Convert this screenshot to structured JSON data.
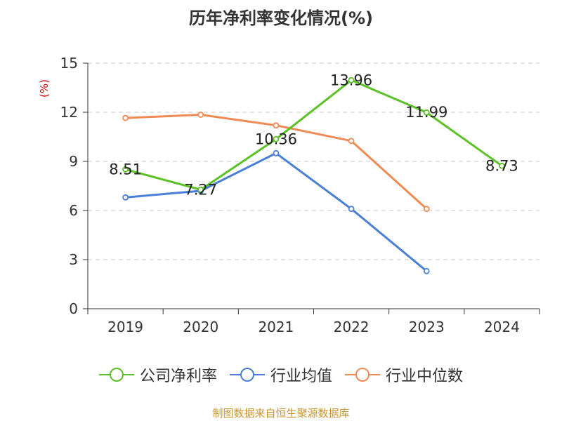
{
  "title": "历年净利率变化情况(%)",
  "source": "制图数据来自恒生聚源数据库",
  "chart_data": {
    "type": "line",
    "title": "历年净利率变化情况(%)",
    "ylabel": "(%)",
    "ylim": [
      0,
      15
    ],
    "yticks": [
      0,
      3,
      6,
      9,
      12,
      15
    ],
    "categories": [
      "2019",
      "2020",
      "2021",
      "2022",
      "2023",
      "2024"
    ],
    "grid": true,
    "legend_position": "bottom",
    "series": [
      {
        "name": "公司净利率",
        "color": "#5cc127",
        "values": [
          8.51,
          7.27,
          10.36,
          13.96,
          11.99,
          8.73
        ],
        "show_labels": true
      },
      {
        "name": "行业均值",
        "color": "#4a7fd8",
        "values": [
          6.8,
          7.2,
          9.5,
          6.1,
          2.3,
          null
        ],
        "show_labels": false
      },
      {
        "name": "行业中位数",
        "color": "#f08a55",
        "values": [
          11.65,
          11.85,
          11.2,
          10.25,
          6.1,
          null
        ],
        "show_labels": false
      }
    ]
  }
}
